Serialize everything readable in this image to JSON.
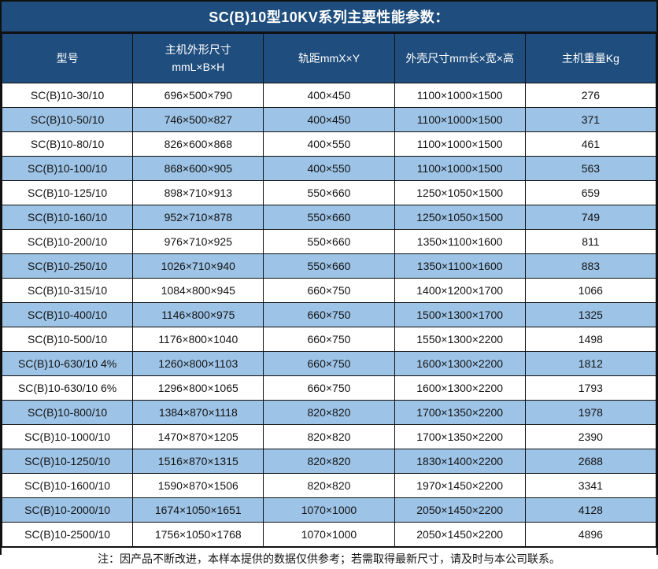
{
  "title": "SC(B)10型10KV系列主要性能参数：",
  "colors": {
    "header_bg": "#1f4e7e",
    "row_bg": "#ffffff",
    "row_alt_bg": "#9dc3e6",
    "border": "#101010",
    "header_text": "#ffffff",
    "body_text": "#141414"
  },
  "table": {
    "columns": [
      "型号",
      "主机外形尺寸\nmmL×B×H",
      "轨距mmX×Y",
      "外壳尺寸mm长×宽×高",
      "主机重量Kg"
    ],
    "rows": [
      [
        "SC(B)10-30/10",
        "696×500×790",
        "400×450",
        "1100×1000×1500",
        "276"
      ],
      [
        "SC(B)10-50/10",
        "746×500×827",
        "400×450",
        "1100×1000×1500",
        "371"
      ],
      [
        "SC(B)10-80/10",
        "826×600×868",
        "400×550",
        "1100×1000×1500",
        "461"
      ],
      [
        "SC(B)10-100/10",
        "868×600×905",
        "400×550",
        "1100×1000×1500",
        "563"
      ],
      [
        "SC(B)10-125/10",
        "898×710×913",
        "550×660",
        "1250×1050×1500",
        "659"
      ],
      [
        "SC(B)10-160/10",
        "952×710×878",
        "550×660",
        "1250×1050×1500",
        "749"
      ],
      [
        "SC(B)10-200/10",
        "976×710×925",
        "550×660",
        "1350×1100×1600",
        "811"
      ],
      [
        "SC(B)10-250/10",
        "1026×710×940",
        "550×660",
        "1350×1100×1600",
        "883"
      ],
      [
        "SC(B)10-315/10",
        "1084×800×945",
        "660×750",
        "1400×1200×1700",
        "1066"
      ],
      [
        "SC(B)10-400/10",
        "1146×800×975",
        "660×750",
        "1500×1300×1700",
        "1325"
      ],
      [
        "SC(B)10-500/10",
        "1176×800×1040",
        "660×750",
        "1550×1300×2200",
        "1498"
      ],
      [
        "SC(B)10-630/10 4%",
        "1260×800×1103",
        "660×750",
        "1600×1300×2200",
        "1812"
      ],
      [
        "SC(B)10-630/10 6%",
        "1296×800×1065",
        "660×750",
        "1600×1300×2200",
        "1793"
      ],
      [
        "SC(B)10-800/10",
        "1384×870×1118",
        "820×820",
        "1700×1350×2200",
        "1978"
      ],
      [
        "SC(B)10-1000/10",
        "1470×870×1205",
        "820×820",
        "1700×1350×2200",
        "2390"
      ],
      [
        "SC(B)10-1250/10",
        "1516×870×1315",
        "820×820",
        "1830×1400×2200",
        "2688"
      ],
      [
        "SC(B)10-1600/10",
        "1590×870×1506",
        "820×820",
        "1970×1450×2200",
        "3341"
      ],
      [
        "SC(B)10-2000/10",
        "1674×1050×1651",
        "1070×1000",
        "2050×1450×2200",
        "4128"
      ],
      [
        "SC(B)10-2500/10",
        "1756×1050×1768",
        "1070×1000",
        "2050×1450×2200",
        "4896"
      ]
    ]
  },
  "footer_note": "注：因产品不断改进，本样本提供的数据仅供参考；若需取得最新尺寸，请及时与本公司联系。"
}
